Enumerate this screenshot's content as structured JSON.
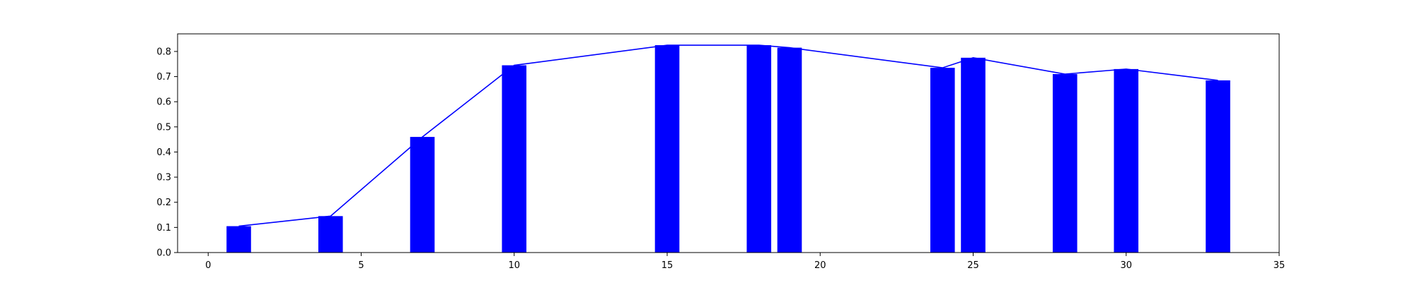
{
  "chart_data": {
    "type": "bar",
    "title": "",
    "xlabel": "",
    "ylabel": "",
    "xlim": [
      -1.0,
      35.0
    ],
    "ylim": [
      0.0,
      0.87
    ],
    "x_ticks": [
      0,
      5,
      10,
      15,
      20,
      25,
      30,
      35
    ],
    "y_ticks": [
      0.0,
      0.1,
      0.2,
      0.3,
      0.4,
      0.5,
      0.6,
      0.7,
      0.8
    ],
    "bar_width": 0.8,
    "grid": false,
    "legend": "none",
    "colors": {
      "bars": "#0000ff",
      "line": "#0000ff",
      "axes": "#000000",
      "background": "#ffffff"
    },
    "x": [
      1,
      4,
      7,
      10,
      15,
      18,
      19,
      24,
      25,
      28,
      30,
      33
    ],
    "values": [
      0.105,
      0.145,
      0.46,
      0.745,
      0.825,
      0.825,
      0.815,
      0.735,
      0.775,
      0.71,
      0.73,
      0.685
    ],
    "line": {
      "x": [
        1,
        4,
        7,
        10,
        15,
        18,
        19,
        24,
        25,
        28,
        30,
        33
      ],
      "y": [
        0.105,
        0.145,
        0.46,
        0.745,
        0.825,
        0.825,
        0.815,
        0.735,
        0.775,
        0.71,
        0.73,
        0.685
      ]
    }
  }
}
